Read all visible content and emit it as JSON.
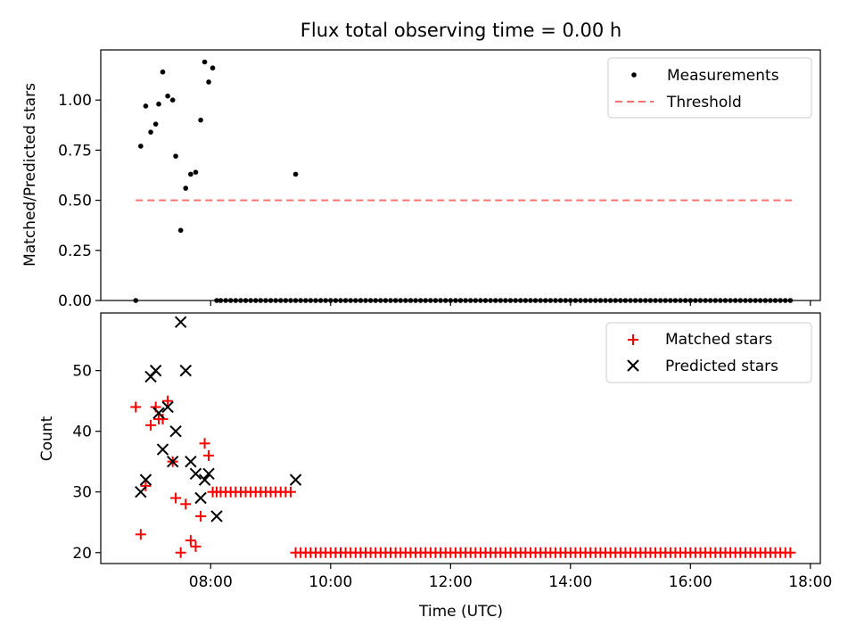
{
  "chart_data": [
    {
      "type": "scatter",
      "title": "Flux total observing time = 0.00 h",
      "xlabel": "",
      "ylabel": "Matched/Predicted stars",
      "xlim": [
        "06:10",
        "18:10"
      ],
      "ylim": [
        0,
        1.25
      ],
      "yticks": [
        0.0,
        0.25,
        0.5,
        0.75,
        1.0
      ],
      "ytick_labels": [
        "0.00",
        "0.25",
        "0.50",
        "0.75",
        "1.00"
      ],
      "legend": {
        "position": "upper right",
        "entries": [
          "Measurements",
          "Threshold"
        ]
      },
      "threshold": {
        "name": "Threshold",
        "value": 0.5,
        "x_start": "06:45",
        "x_end": "17:45",
        "color": "#ff7070"
      },
      "series": [
        {
          "name": "Measurements",
          "color": "#000000",
          "marker": "dot",
          "x": [
            "06:45",
            "06:50",
            "06:55",
            "07:00",
            "07:05",
            "07:08",
            "07:12",
            "07:17",
            "07:22",
            "07:25",
            "07:30",
            "07:35",
            "07:40",
            "07:45",
            "07:50",
            "07:54",
            "07:58",
            "08:02",
            "08:06",
            "09:25"
          ],
          "y": [
            0.0,
            0.77,
            0.97,
            0.84,
            0.88,
            0.98,
            1.14,
            1.02,
            1.0,
            0.72,
            0.35,
            0.56,
            0.63,
            0.64,
            0.9,
            1.19,
            1.09,
            1.16,
            0.0,
            0.63
          ],
          "zero_run": {
            "x_start": "08:10",
            "x_end": "17:40",
            "step_minutes": 5,
            "y": 0.0
          }
        }
      ]
    },
    {
      "type": "scatter",
      "title": "",
      "xlabel": "Time (UTC)",
      "ylabel": "Count",
      "xlim": [
        "06:10",
        "18:10"
      ],
      "ylim": [
        18.2,
        59.5
      ],
      "xticks": [
        "08:00",
        "10:00",
        "12:00",
        "14:00",
        "16:00",
        "18:00"
      ],
      "yticks": [
        20,
        30,
        40,
        50
      ],
      "legend": {
        "position": "upper right",
        "entries": [
          "Matched stars",
          "Predicted stars"
        ]
      },
      "series": [
        {
          "name": "Matched stars",
          "color": "#ff0000",
          "marker": "plus",
          "x": [
            "06:45",
            "06:50",
            "06:55",
            "07:00",
            "07:05",
            "07:08",
            "07:12",
            "07:17",
            "07:22",
            "07:25",
            "07:30",
            "07:35",
            "07:40",
            "07:45",
            "07:50",
            "07:54",
            "07:58",
            "08:02",
            "08:06"
          ],
          "y": [
            44,
            23,
            31,
            41,
            44,
            42,
            42,
            45,
            35,
            29,
            20,
            28,
            22,
            21,
            26,
            38,
            36,
            30,
            30
          ],
          "runs": [
            {
              "x_start": "08:10",
              "x_end": "09:20",
              "step_minutes": 5,
              "y": 30
            },
            {
              "x_start": "09:25",
              "x_end": "17:40",
              "step_minutes": 5,
              "y": 20
            }
          ]
        },
        {
          "name": "Predicted stars",
          "color": "#000000",
          "marker": "x",
          "x": [
            "06:50",
            "06:55",
            "07:00",
            "07:05",
            "07:08",
            "07:12",
            "07:17",
            "07:22",
            "07:25",
            "07:30",
            "07:35",
            "07:40",
            "07:45",
            "07:50",
            "07:54",
            "07:58",
            "08:06",
            "09:25"
          ],
          "y": [
            30,
            32,
            49,
            50,
            43,
            37,
            44,
            35,
            40,
            58,
            50,
            35,
            33,
            29,
            32,
            33,
            26,
            32
          ]
        }
      ]
    }
  ]
}
